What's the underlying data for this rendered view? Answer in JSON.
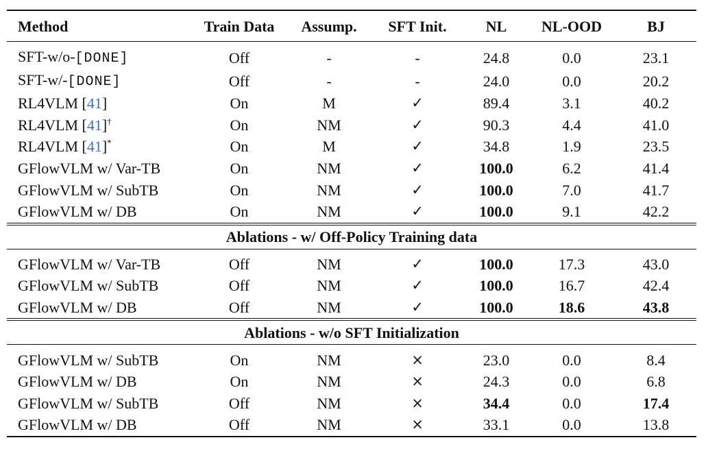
{
  "headers": [
    "Method",
    "Train Data",
    "Assump.",
    "SFT Init.",
    "NL",
    "NL-OOD",
    "BJ"
  ],
  "group1": [
    {
      "method": "SFT-w/o-",
      "method_code": "[DONE]",
      "train": "Off",
      "assump": "-",
      "sft": "-",
      "nl": "24.8",
      "nlood": "0.0",
      "bj": "23.1"
    },
    {
      "method": "SFT-w/-",
      "method_code": "[DONE]",
      "train": "Off",
      "assump": "-",
      "sft": "-",
      "nl": "24.0",
      "nlood": "0.0",
      "bj": "20.2"
    },
    {
      "method": "RL4VLM [",
      "cite": "41",
      "method_suffix": "]",
      "train": "On",
      "assump": "M",
      "sft": "✓",
      "nl": "89.4",
      "nlood": "3.1",
      "bj": "40.2"
    },
    {
      "method": "RL4VLM [",
      "cite": "41",
      "method_suffix": "]",
      "sup": "†",
      "train": "On",
      "assump": "NM",
      "sft": "✓",
      "nl": "90.3",
      "nlood": "4.4",
      "bj": "41.0"
    },
    {
      "method": "RL4VLM [",
      "cite": "41",
      "method_suffix": "]",
      "sup": "*",
      "train": "On",
      "assump": "M",
      "sft": "✓",
      "nl": "34.8",
      "nlood": "1.9",
      "bj": "23.5"
    },
    {
      "method": "GFlowVLM w/ Var-TB",
      "train": "On",
      "assump": "NM",
      "sft": "✓",
      "nl": "100.0",
      "nlood": "6.2",
      "bj": "41.4"
    },
    {
      "method": "GFlowVLM w/ SubTB",
      "train": "On",
      "assump": "NM",
      "sft": "✓",
      "nl": "100.0",
      "nlood": "7.0",
      "bj": "41.7"
    },
    {
      "method": "GFlowVLM w/ DB",
      "train": "On",
      "assump": "NM",
      "sft": "✓",
      "nl": "100.0",
      "nlood": "9.1",
      "bj": "42.2"
    }
  ],
  "section2_title": "Ablations - w/ Off-Policy Training data",
  "group2": [
    {
      "method": "GFlowVLM w/ Var-TB",
      "train": "Off",
      "assump": "NM",
      "sft": "✓",
      "nl": "100.0",
      "nlood": "17.3",
      "bj": "43.0"
    },
    {
      "method": "GFlowVLM w/ SubTB",
      "train": "Off",
      "assump": "NM",
      "sft": "✓",
      "nl": "100.0",
      "nlood": "16.7",
      "bj": "42.4"
    },
    {
      "method": "GFlowVLM w/ DB",
      "train": "Off",
      "assump": "NM",
      "sft": "✓",
      "nl": "100.0",
      "nlood": "18.6",
      "bj": "43.8"
    }
  ],
  "section3_title": "Ablations - w/o SFT Initialization",
  "group3": [
    {
      "method": "GFlowVLM w/ SubTB",
      "train": "On",
      "assump": "NM",
      "sft": "×",
      "nl": "23.0",
      "nlood": "0.0",
      "bj": "8.4"
    },
    {
      "method": "GFlowVLM w/ DB",
      "train": "On",
      "assump": "NM",
      "sft": "×",
      "nl": "24.3",
      "nlood": "0.0",
      "bj": "6.8"
    },
    {
      "method": "GFlowVLM w/ SubTB",
      "train": "Off",
      "assump": "NM",
      "sft": "×",
      "nl": "34.4",
      "nlood": "0.0",
      "bj": "17.4"
    },
    {
      "method": "GFlowVLM w/ DB",
      "train": "Off",
      "assump": "NM",
      "sft": "×",
      "nl": "33.1",
      "nlood": "0.0",
      "bj": "13.8"
    }
  ],
  "colors": {
    "citation": "#3b6fb6",
    "text": "#111111"
  }
}
